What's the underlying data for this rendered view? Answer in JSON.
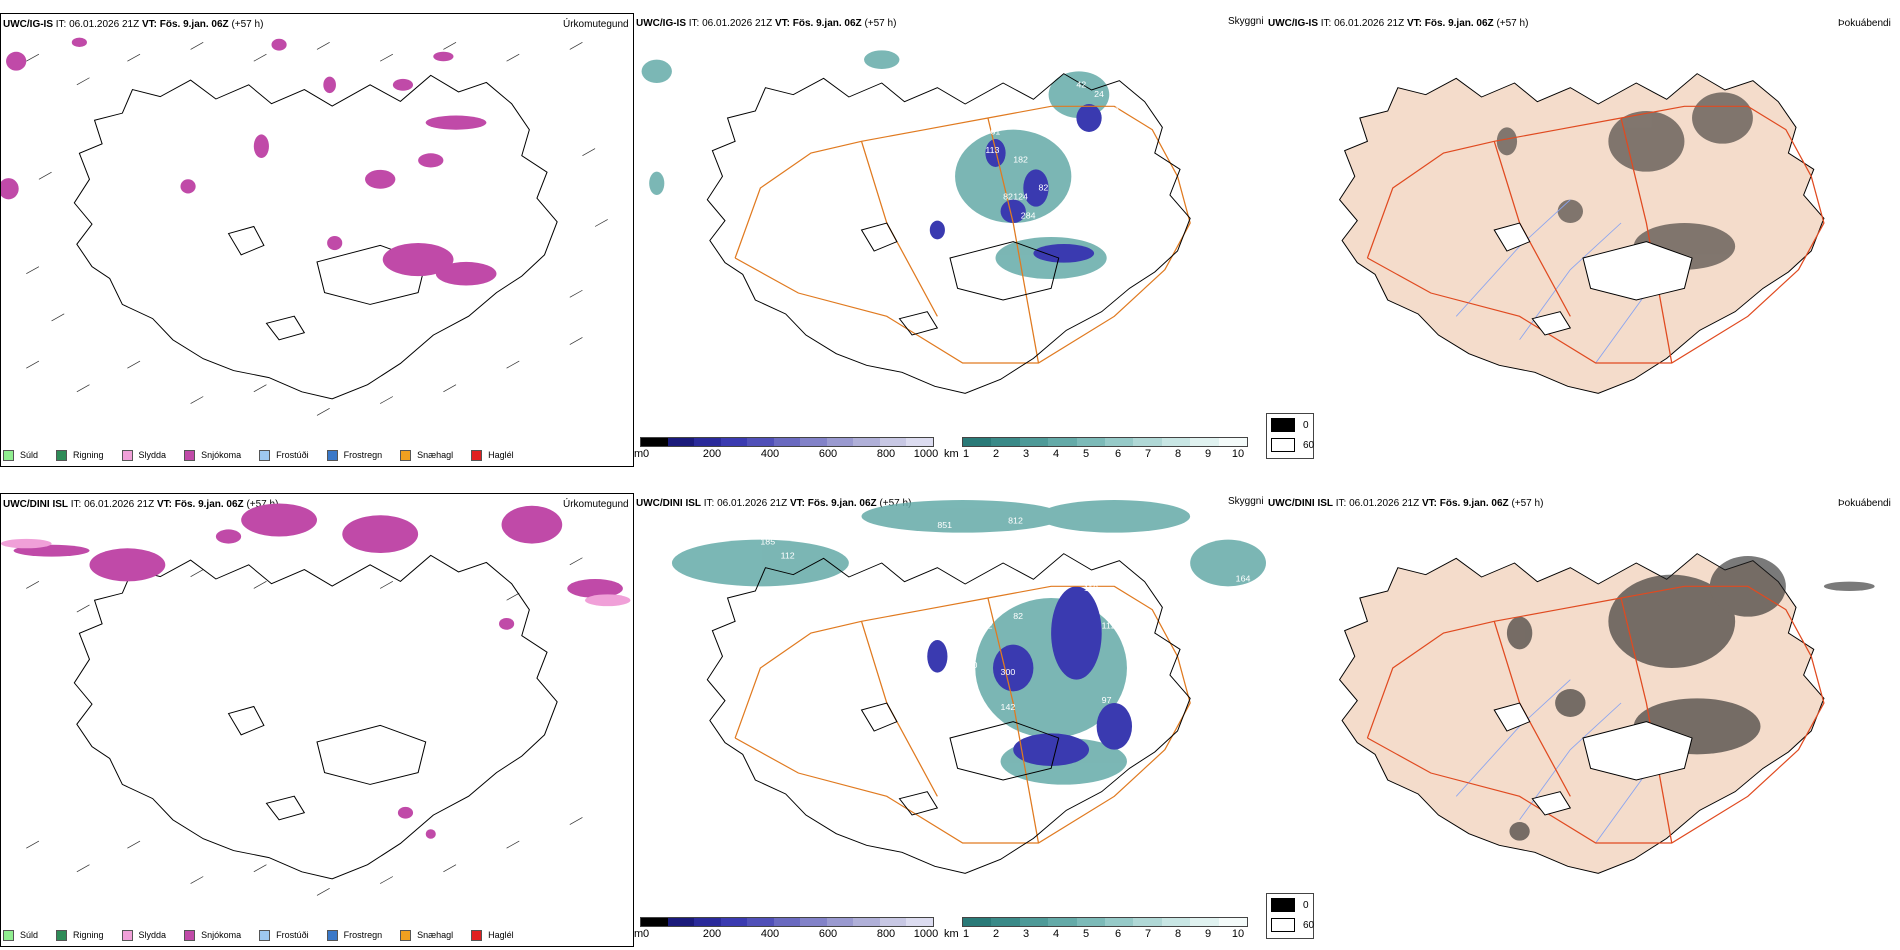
{
  "common": {
    "issue_time": "IT: 06.01.2026 21Z",
    "valid_label": "VT:",
    "valid_time": "Fös. 9.jan. 06Z",
    "lead": "(+57 h)"
  },
  "rows": [
    {
      "model": "UWC/IG-IS",
      "precip_panel": {
        "label": "Úrkomutegund"
      },
      "cloudbase_panel": {
        "label": "Skyggni"
      },
      "fog_panel": {
        "label": "Þokuábendi"
      },
      "cloudbase_labels": [
        "42",
        "24",
        "139",
        "61",
        "113",
        "182",
        "82",
        "124",
        "284",
        "188",
        "92",
        "132",
        "112",
        "30",
        "22",
        "82"
      ]
    },
    {
      "model": "UWC/DINI ISL",
      "precip_panel": {
        "label": "Úrkomutegund"
      },
      "cloudbase_panel": {
        "label": "Skyggni"
      },
      "fog_panel": {
        "label": "Þokuábendi"
      },
      "cloudbase_labels": [
        "185",
        "112",
        "851",
        "812",
        "156",
        "123",
        "164",
        "118",
        "110",
        "122",
        "82",
        "112",
        "380",
        "300",
        "142",
        "97"
      ]
    }
  ],
  "precip_legend": [
    {
      "label": "Súld",
      "color": "#90ee90"
    },
    {
      "label": "Rigning",
      "color": "#2e8b57"
    },
    {
      "label": "Slydda",
      "color": "#f0a0d8"
    },
    {
      "label": "Snjókoma",
      "color": "#c04aa8"
    },
    {
      "label": "Frostúði",
      "color": "#9ec8f0"
    },
    {
      "label": "Frostregn",
      "color": "#3a78c8"
    },
    {
      "label": "Snæhagl",
      "color": "#f0a020"
    },
    {
      "label": "Haglél",
      "color": "#e02020"
    }
  ],
  "height_bar": {
    "unit": "m",
    "ticks": [
      "0",
      "200",
      "400",
      "600",
      "800",
      "1000"
    ],
    "colors": [
      "#000000",
      "#1a1a7a",
      "#2a2a9a",
      "#3a3ab0",
      "#5050b8",
      "#6a6ac0",
      "#8282c8",
      "#9a9ad0",
      "#b0b0d8",
      "#c8c8e4",
      "#dcdcf0"
    ]
  },
  "vis_bar": {
    "unit": "km",
    "ticks": [
      "1",
      "2",
      "3",
      "4",
      "5",
      "6",
      "7",
      "8",
      "9",
      "10"
    ],
    "colors": [
      "#2a7a78",
      "#3a8a88",
      "#4e9a98",
      "#64aaa8",
      "#7cbab8",
      "#96cac8",
      "#b0d8d6",
      "#c8e6e4",
      "#e0f2f0",
      "#f4fbfa"
    ]
  },
  "cloud_legend": {
    "high": "0",
    "low": "60"
  },
  "colors": {
    "coast": "#000000",
    "roads": "#e07a20",
    "fog_land": "#f4dccb",
    "fog_roads": "#e04a20",
    "rivers": "#8aa4f0"
  }
}
